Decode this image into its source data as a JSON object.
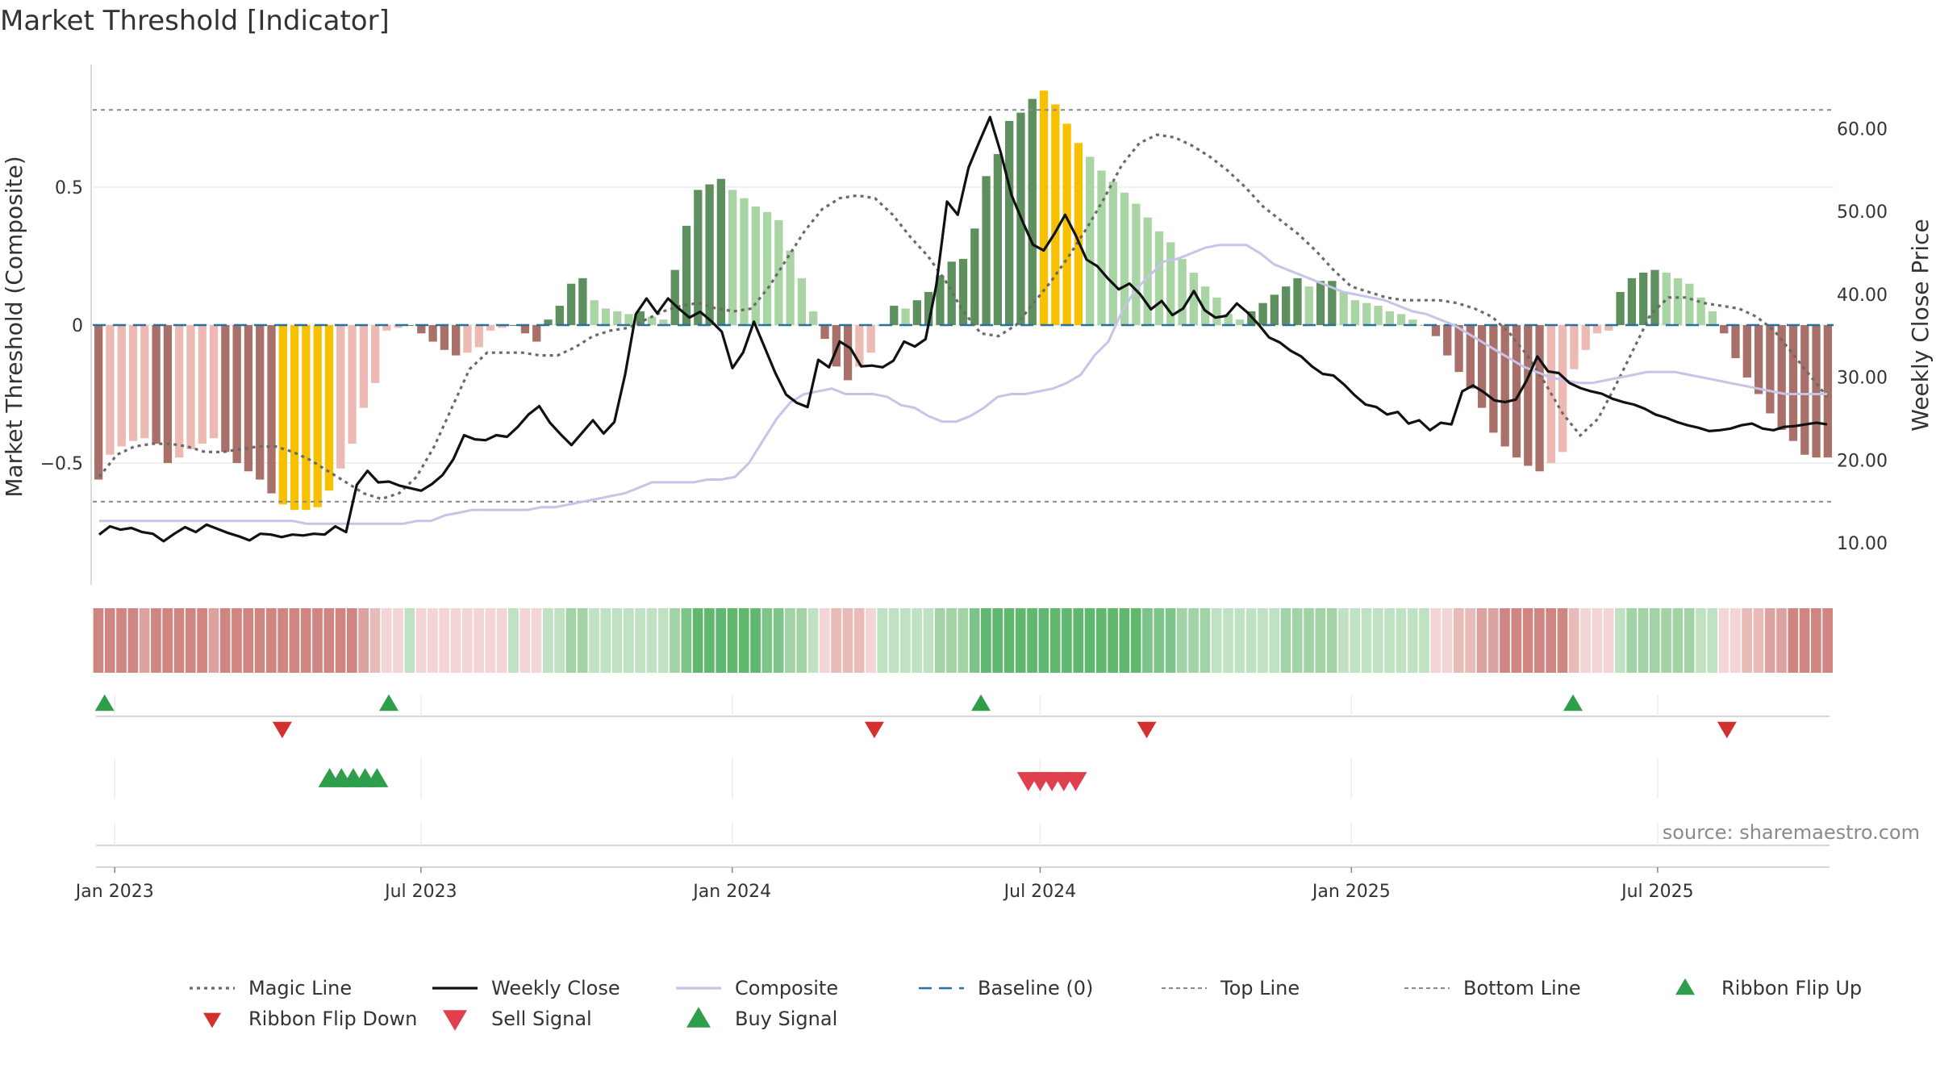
{
  "title": "Market Threshold [Indicator]",
  "source": "source: sharemaestro.com",
  "chart_data": {
    "type": "line",
    "title": "Market Threshold [Indicator]",
    "ylabel_left": "Market Threshold (Composite)",
    "ylabel_right": "Weekly Close Price",
    "ylim_left": [
      -0.95,
      0.95
    ],
    "ylim_right": [
      0,
      70
    ],
    "left_ticks": [
      {
        "value": 0.5,
        "label": "0.5"
      },
      {
        "value": 0,
        "label": "0"
      },
      {
        "value": -0.5,
        "label": "−0.5"
      }
    ],
    "right_ticks": [
      {
        "value": 60,
        "label": "60.00"
      },
      {
        "value": 50,
        "label": "50.00"
      },
      {
        "value": 40,
        "label": "40.00"
      },
      {
        "value": 30,
        "label": "30.00"
      },
      {
        "value": 20,
        "label": "20.00"
      },
      {
        "value": 10,
        "label": "10.00"
      }
    ],
    "x_ticks": [
      {
        "date": "2023-01-01",
        "label": "Jan 2023"
      },
      {
        "date": "2023-07-01",
        "label": "Jul 2023"
      },
      {
        "date": "2024-01-01",
        "label": "Jan 2024"
      },
      {
        "date": "2024-07-01",
        "label": "Jul 2024"
      },
      {
        "date": "2025-01-01",
        "label": "Jan 2025"
      },
      {
        "date": "2025-07-01",
        "label": "Jul 2025"
      }
    ],
    "date_start": "2022-12-19",
    "date_end": "2025-10-13",
    "top_line": 0.78,
    "bottom_line": -0.64,
    "baseline": 0,
    "colors": {
      "dark_green": "#5e8f5e",
      "light_green": "#a9d4a4",
      "dark_red": "#a87068",
      "light_red": "#ecbab2",
      "extreme": "#f7c000",
      "weekly_close": "#111111",
      "composite": "#c8c3e8",
      "magic_line": "#6a6a6a",
      "baseline": "#2b6f9e",
      "threshold_lines": "#8a8a8a",
      "ribbon_flip_up": "#2e9e4a",
      "ribbon_flip_down": "#d33030",
      "sell_signal": "#e0404e",
      "buy_signal": "#2e9e4a"
    },
    "composite_bars": [
      -0.56,
      -0.47,
      -0.44,
      -0.42,
      -0.41,
      -0.43,
      -0.5,
      -0.48,
      -0.45,
      -0.43,
      -0.41,
      -0.46,
      -0.5,
      -0.53,
      -0.56,
      -0.61,
      -0.65,
      -0.67,
      -0.67,
      -0.66,
      -0.6,
      -0.52,
      -0.43,
      -0.3,
      -0.21,
      -0.02,
      -0.01,
      0.0,
      -0.03,
      -0.06,
      -0.09,
      -0.11,
      -0.1,
      -0.08,
      -0.02,
      -0.01,
      0.0,
      -0.03,
      -0.06,
      0.02,
      0.07,
      0.15,
      0.17,
      0.09,
      0.06,
      0.05,
      0.04,
      0.05,
      0.03,
      0.02,
      0.2,
      0.36,
      0.49,
      0.51,
      0.53,
      0.49,
      0.46,
      0.43,
      0.41,
      0.38,
      0.27,
      0.17,
      0.05,
      -0.05,
      -0.15,
      -0.2,
      -0.15,
      -0.1,
      0.0,
      0.07,
      0.06,
      0.09,
      0.12,
      0.18,
      0.23,
      0.24,
      0.35,
      0.54,
      0.62,
      0.74,
      0.77,
      0.82,
      0.85,
      0.8,
      0.73,
      0.66,
      0.61,
      0.56,
      0.52,
      0.48,
      0.44,
      0.39,
      0.34,
      0.3,
      0.24,
      0.19,
      0.14,
      0.1,
      0.04,
      0.02,
      0.05,
      0.08,
      0.11,
      0.14,
      0.17,
      0.14,
      0.16,
      0.16,
      0.12,
      0.09,
      0.08,
      0.07,
      0.05,
      0.04,
      0.02,
      0.0,
      -0.04,
      -0.11,
      -0.17,
      -0.23,
      -0.3,
      -0.39,
      -0.44,
      -0.48,
      -0.51,
      -0.53,
      -0.5,
      -0.46,
      -0.16,
      -0.09,
      -0.03,
      -0.02,
      0.12,
      0.17,
      0.19,
      0.2,
      0.19,
      0.17,
      0.15,
      0.1,
      0.05,
      -0.03,
      -0.12,
      -0.19,
      -0.25,
      -0.32,
      -0.38,
      -0.42,
      -0.47,
      -0.48,
      -0.48
    ],
    "extreme_bar_indices": [
      16,
      17,
      18,
      19,
      20,
      82,
      83,
      84,
      85
    ],
    "weekly_close": [
      11.0,
      12.0,
      11.6,
      11.8,
      11.3,
      11.1,
      10.2,
      11.1,
      11.9,
      11.3,
      12.2,
      11.7,
      11.2,
      10.8,
      10.3,
      11.1,
      11.0,
      10.7,
      11.0,
      10.9,
      11.1,
      11.0,
      12.0,
      11.3,
      17.0,
      18.7,
      17.3,
      17.4,
      16.9,
      16.6,
      16.3,
      17.1,
      18.2,
      20.1,
      23.0,
      22.5,
      22.4,
      23.0,
      22.8,
      24.0,
      25.5,
      26.5,
      24.5,
      23.1,
      21.8,
      23.3,
      24.8,
      23.2,
      24.6,
      30.3,
      37.6,
      39.5,
      37.7,
      39.5,
      38.3,
      37.2,
      37.9,
      36.8,
      35.5,
      31.1,
      33.0,
      36.7,
      33.6,
      30.5,
      27.9,
      26.9,
      26.4,
      32.1,
      31.2,
      34.3,
      33.5,
      31.3,
      31.4,
      31.2,
      32.0,
      34.3,
      33.7,
      34.6,
      41.1,
      51.2,
      49.6,
      55.3,
      58.4,
      61.4,
      57.1,
      52.0,
      48.9,
      46.0,
      45.3,
      47.3,
      49.6,
      47.1,
      44.2,
      43.4,
      41.9,
      40.6,
      41.3,
      40.0,
      38.2,
      39.2,
      37.5,
      38.3,
      40.4,
      38.1,
      37.2,
      37.4,
      38.9,
      37.8,
      36.4,
      34.8,
      34.2,
      33.2,
      32.5,
      31.3,
      30.4,
      30.2,
      29.1,
      27.8,
      26.7,
      26.4,
      25.5,
      25.8,
      24.4,
      24.8,
      23.6,
      24.5,
      24.3,
      28.3,
      29.0,
      28.2,
      27.2,
      27.0,
      27.3,
      29.6,
      32.5,
      30.7,
      30.5,
      29.3,
      28.7,
      28.3,
      28.0,
      27.4,
      27.0,
      26.7,
      26.2,
      25.5,
      25.1,
      24.6,
      24.2,
      23.9,
      23.5,
      23.6,
      23.8,
      24.2,
      24.4,
      23.8,
      23.6,
      24.0,
      24.1,
      24.3,
      24.5,
      24.3
    ],
    "composite_line": [
      -0.71,
      -0.71,
      -0.71,
      -0.71,
      -0.71,
      -0.71,
      -0.71,
      -0.71,
      -0.71,
      -0.71,
      -0.71,
      -0.71,
      -0.71,
      -0.71,
      -0.71,
      -0.72,
      -0.72,
      -0.72,
      -0.72,
      -0.72,
      -0.72,
      -0.72,
      -0.72,
      -0.71,
      -0.71,
      -0.69,
      -0.68,
      -0.67,
      -0.67,
      -0.67,
      -0.67,
      -0.67,
      -0.66,
      -0.66,
      -0.65,
      -0.64,
      -0.63,
      -0.62,
      -0.61,
      -0.59,
      -0.57,
      -0.57,
      -0.57,
      -0.57,
      -0.56,
      -0.56,
      -0.55,
      -0.5,
      -0.42,
      -0.34,
      -0.28,
      -0.25,
      -0.24,
      -0.23,
      -0.25,
      -0.25,
      -0.25,
      -0.26,
      -0.29,
      -0.3,
      -0.33,
      -0.35,
      -0.35,
      -0.33,
      -0.3,
      -0.26,
      -0.25,
      -0.25,
      -0.24,
      -0.23,
      -0.21,
      -0.18,
      -0.11,
      -0.06,
      0.05,
      0.13,
      0.18,
      0.23,
      0.24,
      0.26,
      0.28,
      0.29,
      0.29,
      0.29,
      0.26,
      0.22,
      0.2,
      0.18,
      0.16,
      0.14,
      0.12,
      0.11,
      0.1,
      0.09,
      0.07,
      0.05,
      0.04,
      0.02,
      0.0,
      -0.03,
      -0.06,
      -0.09,
      -0.12,
      -0.15,
      -0.17,
      -0.19,
      -0.2,
      -0.21,
      -0.21,
      -0.2,
      -0.19,
      -0.18,
      -0.17,
      -0.17,
      -0.17,
      -0.18,
      -0.19,
      -0.2,
      -0.21,
      -0.22,
      -0.23,
      -0.24,
      -0.25,
      -0.25,
      -0.25,
      -0.25
    ],
    "magic_line": [
      -0.55,
      -0.47,
      -0.44,
      -0.43,
      -0.43,
      -0.44,
      -0.46,
      -0.46,
      -0.45,
      -0.44,
      -0.44,
      -0.46,
      -0.49,
      -0.53,
      -0.57,
      -0.61,
      -0.63,
      -0.61,
      -0.55,
      -0.44,
      -0.3,
      -0.16,
      -0.1,
      -0.1,
      -0.1,
      -0.11,
      -0.11,
      -0.08,
      -0.04,
      -0.02,
      -0.01,
      0.02,
      0.05,
      0.07,
      0.08,
      0.06,
      0.05,
      0.06,
      0.14,
      0.24,
      0.34,
      0.42,
      0.46,
      0.47,
      0.46,
      0.4,
      0.32,
      0.25,
      0.16,
      0.05,
      -0.03,
      -0.04,
      0.0,
      0.08,
      0.16,
      0.25,
      0.35,
      0.46,
      0.58,
      0.66,
      0.69,
      0.68,
      0.65,
      0.61,
      0.56,
      0.5,
      0.43,
      0.38,
      0.33,
      0.27,
      0.2,
      0.14,
      0.12,
      0.1,
      0.09,
      0.09,
      0.09,
      0.08,
      0.06,
      0.03,
      -0.03,
      -0.11,
      -0.21,
      -0.32,
      -0.4,
      -0.34,
      -0.22,
      -0.09,
      0.04,
      0.1,
      0.1,
      0.08,
      0.07,
      0.06,
      0.03,
      -0.02,
      -0.1,
      -0.18,
      -0.26
    ]
  },
  "ribbon": {
    "colors": [
      "#dde8dd",
      "#41ab5d",
      "#5fb86e",
      "#7cc48a",
      "#a2d3a6",
      "#c1e2c2",
      "#f2d5d4",
      "#e8bbb9",
      "#dca2a0",
      "#cf8581"
    ]
  },
  "signals": {
    "ribbon_flip_up": [
      "2022-12-26",
      "2023-06-12",
      "2024-05-27",
      "2025-05-12"
    ],
    "ribbon_flip_down": [
      "2023-04-10",
      "2024-03-25",
      "2024-09-02",
      "2025-08-11"
    ],
    "sell_signal": [
      "2024-06-24",
      "2024-07-01",
      "2024-07-08",
      "2024-07-15",
      "2024-07-22"
    ],
    "buy_signal": [
      "2023-05-08",
      "2023-05-15",
      "2023-05-22",
      "2023-05-29",
      "2023-06-05"
    ]
  },
  "legend": [
    {
      "key": "magic_line",
      "label": "Magic Line",
      "symbol": "dotted",
      "color": "#6a6a6a"
    },
    {
      "key": "weekly_close",
      "label": "Weekly Close",
      "symbol": "solid",
      "color": "#111111"
    },
    {
      "key": "composite",
      "label": "Composite",
      "symbol": "solid",
      "color": "#c8c3e8"
    },
    {
      "key": "baseline",
      "label": "Baseline (0)",
      "symbol": "dashed",
      "color": "#2b6f9e"
    },
    {
      "key": "top_line",
      "label": "Top Line",
      "symbol": "thin-dashed",
      "color": "#8a8a8a"
    },
    {
      "key": "bottom_line",
      "label": "Bottom Line",
      "symbol": "thin-dashed",
      "color": "#8a8a8a"
    },
    {
      "key": "ribbon_flip_up",
      "label": "Ribbon Flip Up",
      "symbol": "triangle-up",
      "color": "#2e9e4a"
    },
    {
      "key": "ribbon_flip_down",
      "label": "Ribbon Flip Down",
      "symbol": "triangle-down",
      "color": "#d33030"
    },
    {
      "key": "sell_signal",
      "label": "Sell Signal",
      "symbol": "triangle-down-big",
      "color": "#e0404e"
    },
    {
      "key": "buy_signal",
      "label": "Buy Signal",
      "symbol": "triangle-up-big",
      "color": "#2e9e4a"
    }
  ]
}
